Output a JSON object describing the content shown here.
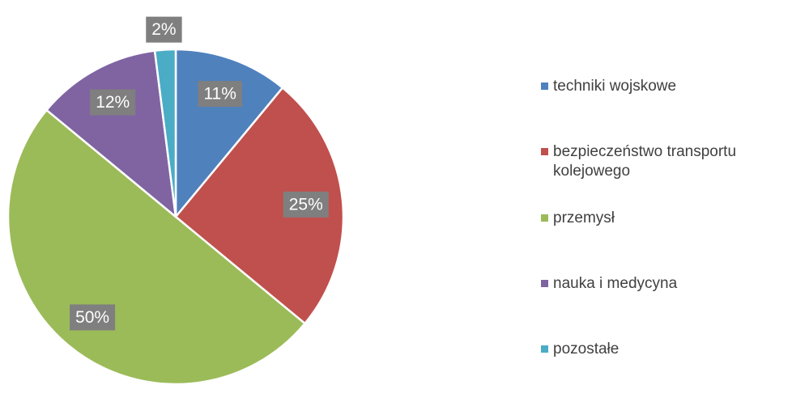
{
  "chart_data": {
    "type": "pie",
    "categories": [
      "techniki wojskowe",
      "bezpieczeństwo transportu kolejowego",
      "przemysł",
      "nauka i medycyna",
      "pozostałe"
    ],
    "values": [
      11,
      25,
      50,
      12,
      2
    ],
    "value_labels": [
      "11%",
      "25%",
      "50%",
      "12%",
      "2%"
    ],
    "colors": [
      "#4f81bd",
      "#c0504d",
      "#9bbb59",
      "#8064a2",
      "#4bacc6"
    ],
    "legend": "right"
  }
}
